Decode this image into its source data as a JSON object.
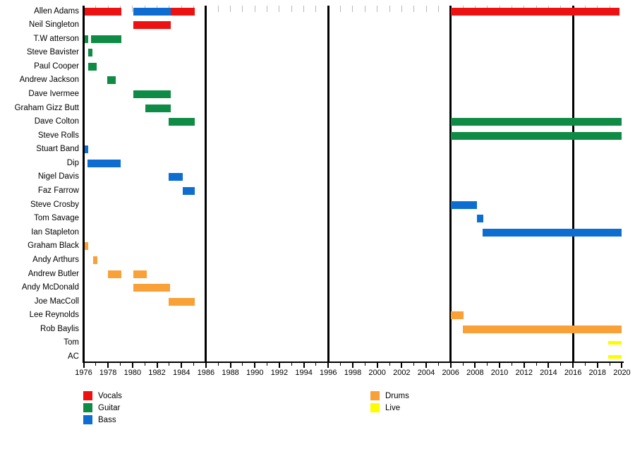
{
  "window": {
    "background": "#ffffff"
  },
  "chart_data": {
    "type": "bar",
    "variant": "horizontal-membership-timeline",
    "title": "",
    "xlabel": "",
    "ylabel": "",
    "grid": "off",
    "legend_position": "bottom",
    "x_axis": {
      "min": 1976,
      "max": 2020,
      "major_tick_step": 2,
      "minor_tick_step": 1,
      "tick_labels": [
        "1976",
        "1978",
        "1980",
        "1982",
        "1984",
        "1986",
        "1988",
        "1990",
        "1992",
        "1994",
        "1996",
        "1998",
        "2000",
        "2002",
        "2004",
        "2006",
        "2008",
        "2010",
        "2012",
        "2014",
        "2016",
        "2018",
        "2020"
      ]
    },
    "event_line_years": [
      1986,
      1996,
      2006,
      2016
    ],
    "roles": {
      "Vocals": "#ee1111",
      "Guitar": "#0e8b45",
      "Bass": "#0d6dd1",
      "Drums": "#f9a137",
      "Live": "#fdfd00"
    },
    "legend": {
      "columns": [
        {
          "items": [
            {
              "label": "Vocals",
              "role": "Vocals"
            },
            {
              "label": "Guitar",
              "role": "Guitar"
            },
            {
              "label": "Bass",
              "role": "Bass"
            }
          ]
        },
        {
          "items": [
            {
              "label": "Drums",
              "role": "Drums"
            },
            {
              "label": "Live",
              "role": "Live"
            }
          ]
        }
      ]
    },
    "members": [
      {
        "name": "Allen Adams",
        "bars": [
          {
            "role": "Vocals",
            "start": 1976.1,
            "end": 1979.1
          },
          {
            "role": "Bass",
            "start": 1980.05,
            "end": 1983.1
          },
          {
            "role": "Vocals",
            "start": 1983.1,
            "end": 1985.1
          },
          {
            "role": "Vocals",
            "start": 2006.0,
            "end": 2019.8
          }
        ]
      },
      {
        "name": "Neil Singleton",
        "bars": [
          {
            "role": "Vocals",
            "start": 1980.05,
            "end": 1983.1
          }
        ]
      },
      {
        "name": "T.W atterson",
        "bars": [
          {
            "role": "Guitar",
            "start": 1976.1,
            "end": 1976.35
          },
          {
            "role": "Guitar",
            "start": 1976.6,
            "end": 1979.1
          }
        ]
      },
      {
        "name": "Steve Bavister",
        "bars": [
          {
            "role": "Guitar",
            "start": 1976.35,
            "end": 1976.7
          }
        ]
      },
      {
        "name": "Paul Cooper",
        "bars": [
          {
            "role": "Guitar",
            "start": 1976.35,
            "end": 1977.05
          }
        ]
      },
      {
        "name": "Andrew Jackson",
        "bars": [
          {
            "role": "Guitar",
            "start": 1977.95,
            "end": 1978.65
          }
        ]
      },
      {
        "name": "Dave Ivermee",
        "bars": [
          {
            "role": "Guitar",
            "start": 1980.05,
            "end": 1983.1
          }
        ]
      },
      {
        "name": "Graham Gizz Butt",
        "bars": [
          {
            "role": "Guitar",
            "start": 1981.05,
            "end": 1983.1
          }
        ]
      },
      {
        "name": "Dave Colton",
        "bars": [
          {
            "role": "Guitar",
            "start": 1982.95,
            "end": 1985.1
          },
          {
            "role": "Guitar",
            "start": 2006.0,
            "end": 2020.0
          }
        ]
      },
      {
        "name": "Steve Rolls",
        "bars": [
          {
            "role": "Guitar",
            "start": 2006.0,
            "end": 2020.0
          }
        ]
      },
      {
        "name": "Stuart Band",
        "bars": [
          {
            "role": "Bass",
            "start": 1976.1,
            "end": 1976.4
          }
        ]
      },
      {
        "name": "Dip",
        "bars": [
          {
            "role": "Bass",
            "start": 1976.3,
            "end": 1979.05
          }
        ]
      },
      {
        "name": "Nigel Davis",
        "bars": [
          {
            "role": "Bass",
            "start": 1982.95,
            "end": 1984.1
          }
        ]
      },
      {
        "name": "Faz Farrow",
        "bars": [
          {
            "role": "Bass",
            "start": 1984.1,
            "end": 1985.1
          }
        ]
      },
      {
        "name": "Steve Crosby",
        "bars": [
          {
            "role": "Bass",
            "start": 2006.0,
            "end": 2008.15
          }
        ]
      },
      {
        "name": "Tom Savage",
        "bars": [
          {
            "role": "Bass",
            "start": 2008.15,
            "end": 2008.65
          }
        ]
      },
      {
        "name": "Ian Stapleton",
        "bars": [
          {
            "role": "Bass",
            "start": 2008.6,
            "end": 2020.0
          }
        ]
      },
      {
        "name": "Graham Black",
        "bars": [
          {
            "role": "Drums",
            "start": 1976.1,
            "end": 1976.4
          }
        ]
      },
      {
        "name": "Andy Arthurs",
        "bars": [
          {
            "role": "Drums",
            "start": 1976.75,
            "end": 1977.1
          }
        ]
      },
      {
        "name": "Andrew Butler",
        "bars": [
          {
            "role": "Drums",
            "start": 1978.0,
            "end": 1979.1
          },
          {
            "role": "Drums",
            "start": 1980.05,
            "end": 1981.15
          }
        ]
      },
      {
        "name": "Andy McDonald",
        "bars": [
          {
            "role": "Drums",
            "start": 1980.05,
            "end": 1983.05
          }
        ]
      },
      {
        "name": "Joe MacColl",
        "bars": [
          {
            "role": "Drums",
            "start": 1982.95,
            "end": 1985.1
          }
        ]
      },
      {
        "name": "Lee Reynolds",
        "bars": [
          {
            "role": "Drums",
            "start": 2006.0,
            "end": 2007.05
          }
        ]
      },
      {
        "name": "Rob Baylis",
        "bars": [
          {
            "role": "Drums",
            "start": 2007.0,
            "end": 2020.0
          }
        ]
      },
      {
        "name": "Tom",
        "bars": [
          {
            "role": "Live",
            "start": 2018.9,
            "end": 2020.0
          }
        ]
      },
      {
        "name": "AC",
        "bars": [
          {
            "role": "Live",
            "start": 2018.9,
            "end": 2020.0
          }
        ]
      }
    ]
  }
}
